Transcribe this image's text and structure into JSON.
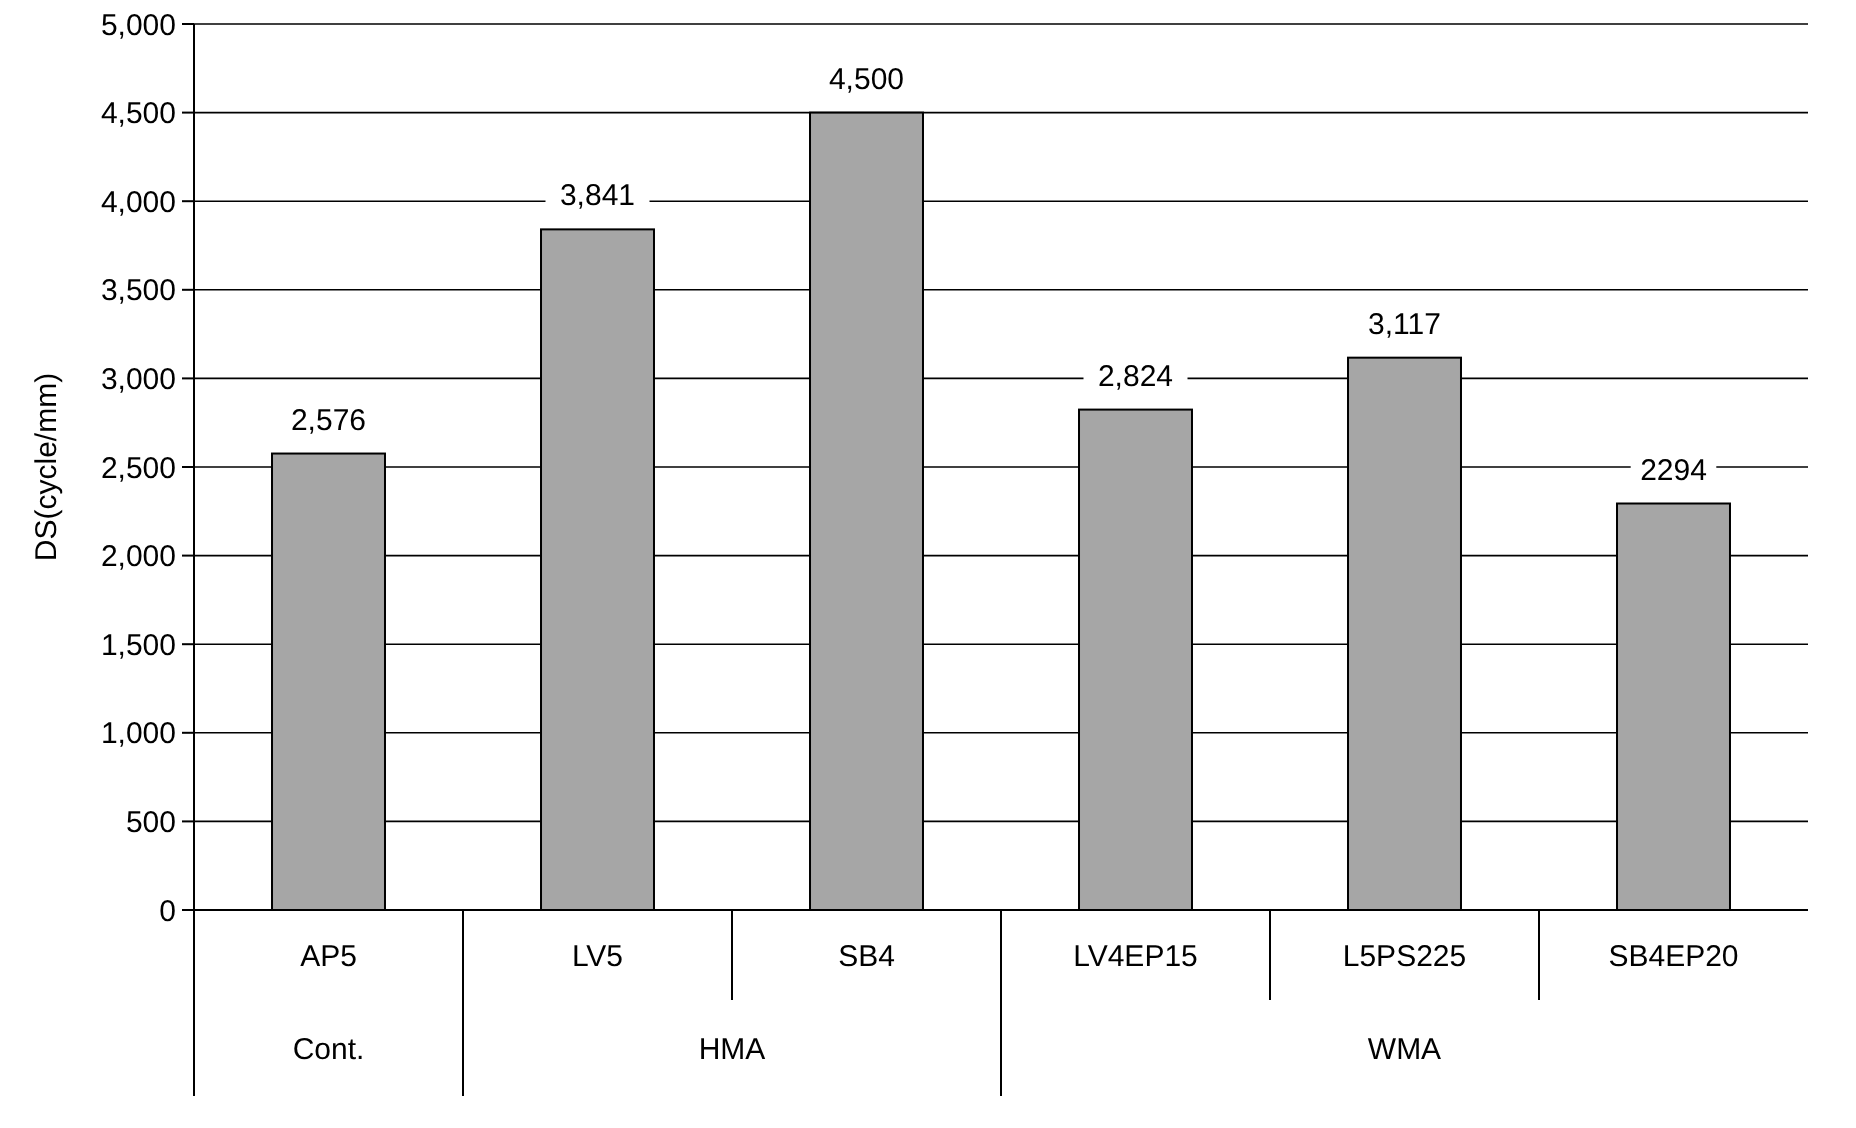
{
  "chart_data": {
    "type": "bar",
    "ylabel": "DS(cycle/mm)",
    "categories": [
      "AP5",
      "LV5",
      "SB4",
      "LV4EP15",
      "L5PS225",
      "SB4EP20"
    ],
    "values": [
      2576,
      3841,
      4500,
      2824,
      3117,
      2294
    ],
    "value_labels": [
      "2,576",
      "3,841",
      "4,500",
      "2,824",
      "3,117",
      "2294"
    ],
    "color": "#a6a6a6",
    "ylim": [
      0,
      5000
    ],
    "yticks": [
      {
        "value": 0,
        "label": "0"
      },
      {
        "value": 500,
        "label": "500"
      },
      {
        "value": 1000,
        "label": "1,000"
      },
      {
        "value": 1500,
        "label": "1,500"
      },
      {
        "value": 2000,
        "label": "2,000"
      },
      {
        "value": 2500,
        "label": "2,500"
      },
      {
        "value": 3000,
        "label": "3,000"
      },
      {
        "value": 3500,
        "label": "3,500"
      },
      {
        "value": 4000,
        "label": "4,000"
      },
      {
        "value": 4500,
        "label": "4,500"
      },
      {
        "value": 5000,
        "label": "5,000"
      }
    ],
    "grid": "y",
    "annotations": [
      "Cont.",
      "HMA",
      "WMA"
    ]
  }
}
